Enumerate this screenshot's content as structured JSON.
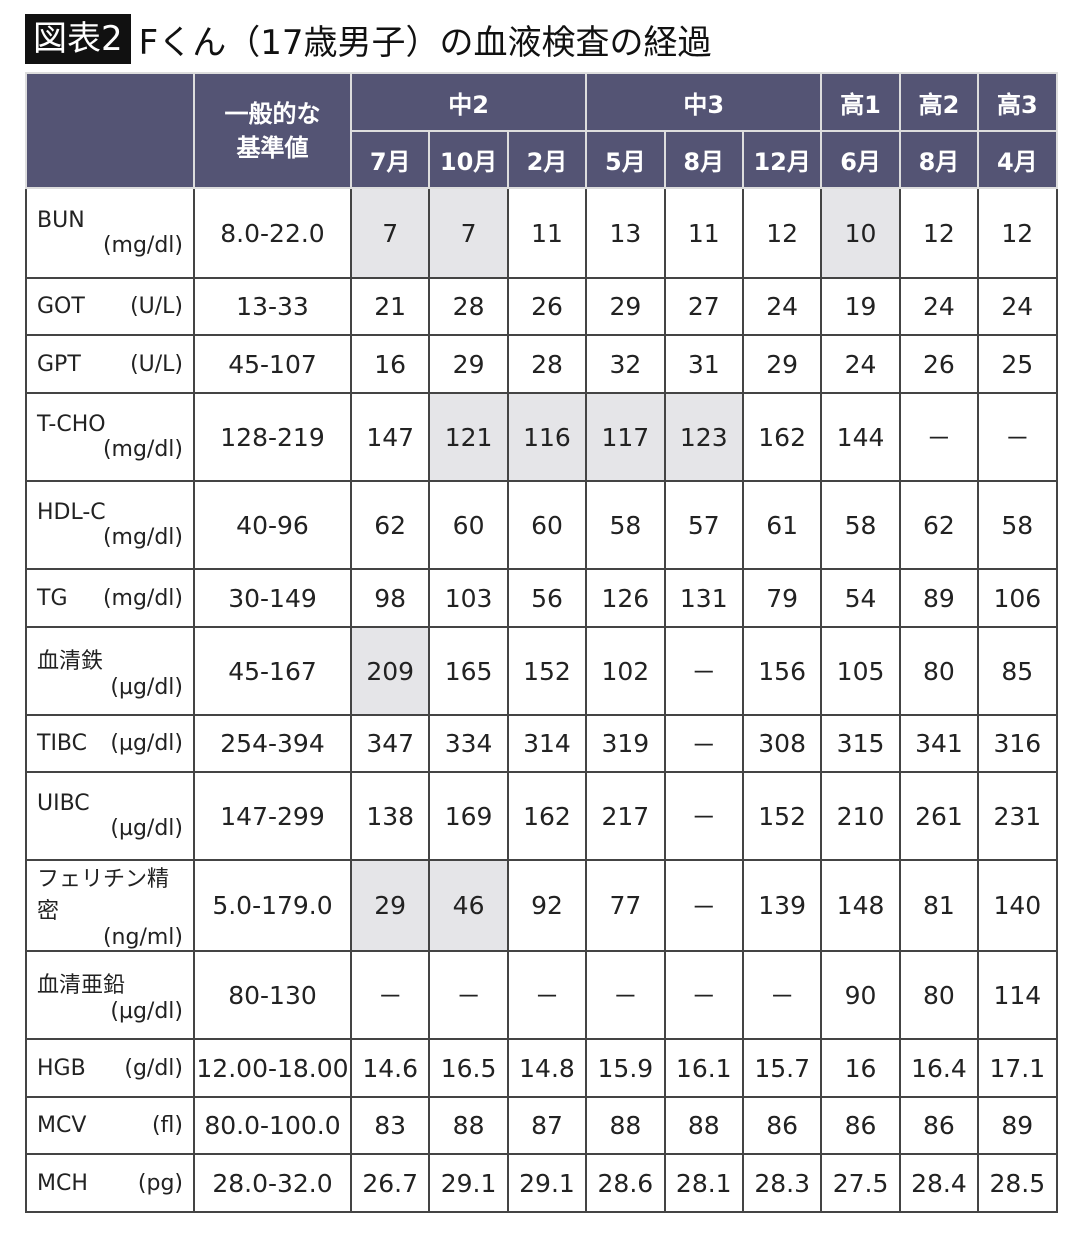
{
  "title": {
    "badge": "図表2",
    "text": "Fくん（17歳男子）の血液検査の経過"
  },
  "header": {
    "reference_label": "一般的な\n基準値",
    "groups": [
      {
        "label": "中2",
        "span": 3
      },
      {
        "label": "中3",
        "span": 3
      },
      {
        "label": "高1",
        "span": 1
      },
      {
        "label": "高2",
        "span": 1
      },
      {
        "label": "高3",
        "span": 1
      }
    ],
    "months": [
      "7月",
      "10月",
      "2月",
      "5月",
      "8月",
      "12月",
      "6月",
      "8月",
      "4月"
    ]
  },
  "highlight_color": "#e5e5e8",
  "header_color": "#545474",
  "rows": [
    {
      "name": "BUN",
      "unit": "(mg/dl)",
      "two_line": true,
      "ref": "8.0-22.0",
      "values": [
        "7",
        "7",
        "11",
        "13",
        "11",
        "12",
        "10",
        "12",
        "12"
      ],
      "highlighted": [
        0,
        1,
        6
      ]
    },
    {
      "name": "GOT",
      "unit": "(U/L)",
      "two_line": false,
      "ref": "13-33",
      "values": [
        "21",
        "28",
        "26",
        "29",
        "27",
        "24",
        "19",
        "24",
        "24"
      ],
      "highlighted": []
    },
    {
      "name": "GPT",
      "unit": "(U/L)",
      "two_line": false,
      "ref": "45-107",
      "values": [
        "16",
        "29",
        "28",
        "32",
        "31",
        "29",
        "24",
        "26",
        "25"
      ],
      "highlighted": []
    },
    {
      "name": "T-CHO",
      "unit": "(mg/dl)",
      "two_line": true,
      "ref": "128-219",
      "values": [
        "147",
        "121",
        "116",
        "117",
        "123",
        "162",
        "144",
        "－",
        "－"
      ],
      "highlighted": [
        1,
        2,
        3,
        4
      ]
    },
    {
      "name": "HDL-C",
      "unit": "(mg/dl)",
      "two_line": true,
      "ref": "40-96",
      "values": [
        "62",
        "60",
        "60",
        "58",
        "57",
        "61",
        "58",
        "62",
        "58"
      ],
      "highlighted": []
    },
    {
      "name": "TG",
      "unit": "(mg/dl)",
      "two_line": false,
      "ref": "30-149",
      "values": [
        "98",
        "103",
        "56",
        "126",
        "131",
        "79",
        "54",
        "89",
        "106"
      ],
      "highlighted": []
    },
    {
      "name": "血清鉄",
      "unit": "(µg/dl)",
      "two_line": true,
      "ref": "45-167",
      "values": [
        "209",
        "165",
        "152",
        "102",
        "－",
        "156",
        "105",
        "80",
        "85"
      ],
      "highlighted": [
        0
      ]
    },
    {
      "name": "TIBC",
      "unit": "(µg/dl)",
      "two_line": false,
      "ref": "254-394",
      "values": [
        "347",
        "334",
        "314",
        "319",
        "－",
        "308",
        "315",
        "341",
        "316"
      ],
      "highlighted": []
    },
    {
      "name": "UIBC",
      "unit": "(µg/dl)",
      "two_line": true,
      "ref": "147-299",
      "values": [
        "138",
        "169",
        "162",
        "217",
        "－",
        "152",
        "210",
        "261",
        "231"
      ],
      "highlighted": []
    },
    {
      "name": "フェリチン精密",
      "unit": "(ng/ml)",
      "two_line": true,
      "ref": "5.0-179.0",
      "values": [
        "29",
        "46",
        "92",
        "77",
        "－",
        "139",
        "148",
        "81",
        "140"
      ],
      "highlighted": [
        0,
        1
      ]
    },
    {
      "name": "血清亜鉛",
      "unit": "(µg/dl)",
      "two_line": true,
      "ref": "80-130",
      "values": [
        "－",
        "－",
        "－",
        "－",
        "－",
        "－",
        "90",
        "80",
        "114"
      ],
      "highlighted": []
    },
    {
      "name": "HGB",
      "unit": "(g/dl)",
      "two_line": false,
      "ref": "12.00-18.00",
      "values": [
        "14.6",
        "16.5",
        "14.8",
        "15.9",
        "16.1",
        "15.7",
        "16",
        "16.4",
        "17.1"
      ],
      "highlighted": []
    },
    {
      "name": "MCV",
      "unit": "(fl)",
      "two_line": false,
      "ref": "80.0-100.0",
      "values": [
        "83",
        "88",
        "87",
        "88",
        "88",
        "86",
        "86",
        "86",
        "89"
      ],
      "highlighted": []
    },
    {
      "name": "MCH",
      "unit": "(pg)",
      "two_line": false,
      "ref": "28.0-32.0",
      "values": [
        "26.7",
        "29.1",
        "29.1",
        "28.6",
        "28.1",
        "28.3",
        "27.5",
        "28.4",
        "28.5"
      ],
      "highlighted": []
    }
  ]
}
